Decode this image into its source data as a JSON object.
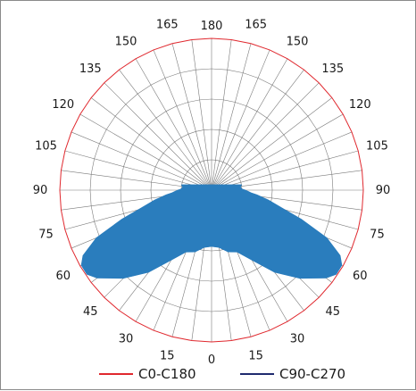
{
  "chart_data": {
    "type": "polar",
    "title": "",
    "angle_labels": {
      "left": [
        "180",
        "165",
        "150",
        "135",
        "120",
        "105",
        "90",
        "75",
        "60",
        "45",
        "30",
        "15",
        "0"
      ],
      "right": [
        "180",
        "165",
        "150",
        "135",
        "120",
        "105",
        "90",
        "75",
        "60",
        "45",
        "30",
        "15",
        "0"
      ]
    },
    "angle_step_deg": 7.5,
    "ring_count": 5,
    "rmax": 1,
    "grid": true,
    "legend": {
      "position": "bottom",
      "entries": [
        {
          "label": "C0-C180",
          "color": "#e0282e"
        },
        {
          "label": "C90-C270",
          "color": "#1f2a6e"
        }
      ]
    },
    "series": [
      {
        "name": "C0-C180",
        "color": "#e0282e",
        "fill": "#2a7dbd",
        "angles": [
          0,
          7.5,
          15,
          22.5,
          30,
          37.5,
          45,
          52.5,
          56,
          60,
          63,
          67.5,
          72,
          75,
          80,
          84,
          86,
          88,
          90,
          92,
          96,
          100
        ],
        "values": [
          0.37,
          0.38,
          0.42,
          0.44,
          0.53,
          0.68,
          0.82,
          0.95,
          0.99,
          0.99,
          0.95,
          0.82,
          0.62,
          0.5,
          0.38,
          0.3,
          0.26,
          0.24,
          0.22,
          0.2,
          0.19,
          0.2
        ]
      },
      {
        "name": "C90-C270",
        "color": "#1f2a6e",
        "fill": "#2a7dbd",
        "angles": [
          0,
          7.5,
          15,
          22.5,
          30,
          37.5,
          45,
          52.5,
          56,
          60,
          63,
          67.5,
          72,
          75,
          80,
          84,
          86,
          88,
          90,
          92,
          96,
          100
        ],
        "values": [
          0.37,
          0.38,
          0.42,
          0.44,
          0.53,
          0.68,
          0.82,
          0.95,
          0.99,
          0.99,
          0.95,
          0.82,
          0.62,
          0.5,
          0.38,
          0.3,
          0.26,
          0.24,
          0.22,
          0.2,
          0.19,
          0.2
        ]
      }
    ]
  }
}
